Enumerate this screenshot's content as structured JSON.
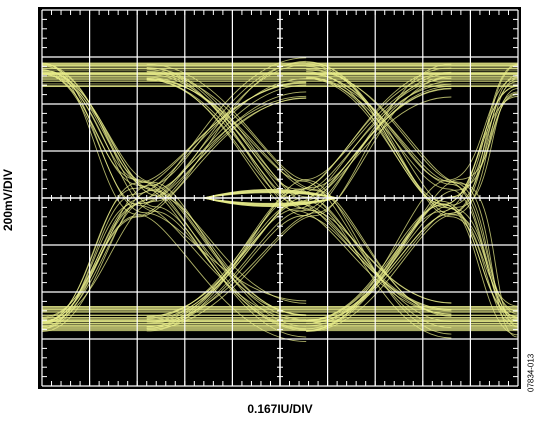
{
  "chart_data": {
    "type": "eye-diagram",
    "xlabel": "0.167IU/DIV",
    "ylabel": "200mV/DIV",
    "grid": true,
    "grid_divisions": {
      "x": 10,
      "y": 8
    },
    "background_color": "#000000",
    "grid_color": "#ffffff",
    "trace_color": "#e8ec8a",
    "eye": {
      "high_level_div": 2.9,
      "low_level_div": -2.85,
      "crossings_div": [
        -2.8,
        0.55,
        3.6
      ],
      "eye_opening_div": 0.33
    }
  },
  "figure_id": "07834-013"
}
